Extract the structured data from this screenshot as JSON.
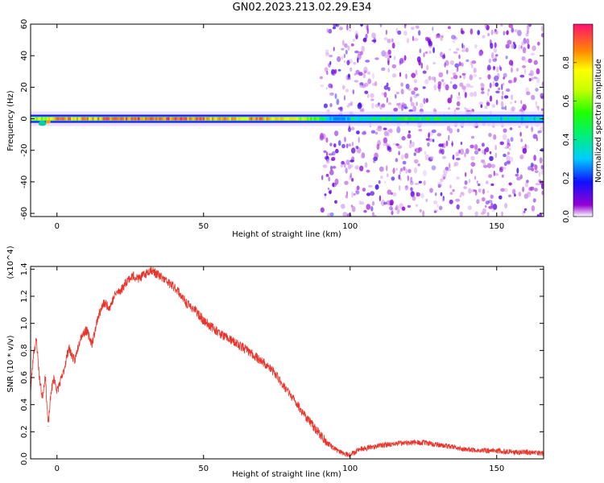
{
  "figure": {
    "title": "GN02.2023.213.02.29.E34"
  },
  "chart_data": [
    {
      "type": "heatmap",
      "title": "GN02.2023.213.02.29.E34",
      "xlabel": "Height of straight line (km)",
      "ylabel": "Frequency (Hz)",
      "xlim": [
        -9,
        166
      ],
      "ylim": [
        -62,
        60
      ],
      "xticks": [
        0,
        50,
        100,
        150
      ],
      "yticks": [
        60,
        40,
        20,
        0,
        -20,
        -40,
        -60
      ],
      "colorbar": {
        "label": "Normalized spectral amplitude",
        "range": [
          0.0,
          1.0
        ],
        "ticks": [
          0.0,
          0.2,
          0.4,
          0.6,
          0.8
        ]
      },
      "features": {
        "carrier_line_frequency_hz": 0,
        "carrier_line_x_range_km": [
          -9,
          166
        ],
        "carrier_strong_until_km": 92,
        "scatter_noise_x_range_km": [
          90,
          166
        ]
      },
      "carrier_amplitude_profile": {
        "x": [
          -9,
          -5,
          0,
          5,
          10,
          20,
          30,
          40,
          50,
          60,
          70,
          80,
          88,
          92,
          96,
          100,
          110,
          120,
          130,
          140,
          150,
          160,
          166
        ],
        "amplitude": [
          0.75,
          0.7,
          0.95,
          0.9,
          0.85,
          0.95,
          0.95,
          0.95,
          0.9,
          0.85,
          0.9,
          0.8,
          0.6,
          0.4,
          0.2,
          0.45,
          0.5,
          0.55,
          0.5,
          0.5,
          0.4,
          0.4,
          0.4
        ]
      }
    },
    {
      "type": "line",
      "xlabel": "Height of straight line (km)",
      "ylabel": "SNR (10 * v/v)",
      "y_multiplier_label": "(x10^4)",
      "xlim": [
        -9,
        166
      ],
      "ylim": [
        0,
        1.42
      ],
      "xticks": [
        0,
        50,
        100,
        150
      ],
      "yticks": [
        0.0,
        0.2,
        0.4,
        0.6,
        0.8,
        1.0,
        1.2,
        1.4
      ],
      "series": [
        {
          "color": "#e8342a",
          "x": [
            -9,
            -8,
            -7,
            -6,
            -5,
            -4,
            -3,
            -2,
            -1,
            0,
            2,
            4,
            6,
            8,
            10,
            12,
            14,
            16,
            18,
            20,
            22,
            24,
            26,
            28,
            30,
            32,
            33,
            35,
            38,
            41,
            44,
            47,
            50,
            53,
            56,
            59,
            62,
            65,
            68,
            71,
            74,
            77,
            80,
            83,
            86,
            89,
            92,
            95,
            98,
            100,
            103,
            106,
            110,
            115,
            120,
            125,
            128,
            132,
            136,
            140,
            145,
            150,
            155,
            160,
            166
          ],
          "y": [
            0.5,
            0.78,
            0.88,
            0.6,
            0.45,
            0.62,
            0.24,
            0.5,
            0.6,
            0.5,
            0.62,
            0.82,
            0.72,
            0.9,
            0.95,
            0.85,
            1.05,
            1.15,
            1.12,
            1.22,
            1.25,
            1.32,
            1.35,
            1.33,
            1.36,
            1.4,
            1.38,
            1.35,
            1.3,
            1.25,
            1.15,
            1.1,
            1.02,
            0.97,
            0.92,
            0.88,
            0.84,
            0.8,
            0.75,
            0.7,
            0.64,
            0.55,
            0.46,
            0.37,
            0.28,
            0.2,
            0.12,
            0.07,
            0.04,
            0.03,
            0.07,
            0.08,
            0.1,
            0.11,
            0.12,
            0.12,
            0.11,
            0.1,
            0.08,
            0.07,
            0.06,
            0.06,
            0.05,
            0.05,
            0.04
          ]
        }
      ]
    }
  ]
}
